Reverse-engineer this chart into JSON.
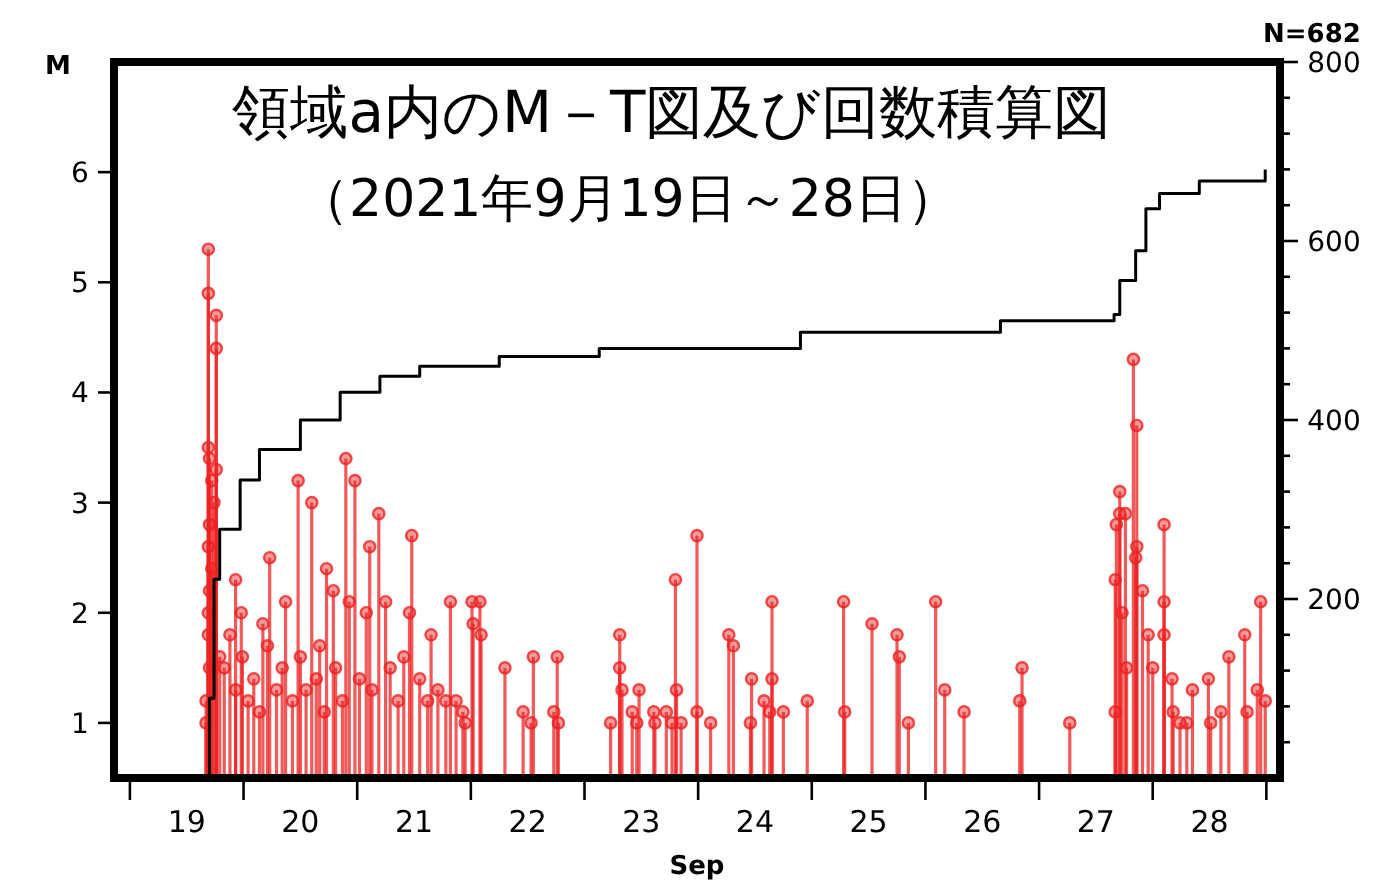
{
  "chart_data": {
    "type": "lollipop",
    "title": "領域a内のM－T図及び回数積算図",
    "subtitle": "（2021年9月19日～28日）",
    "xlabel": "Sep",
    "ylabel": "M",
    "annotations": [
      "N=682"
    ],
    "xlim": [
      18.86,
      29.12
    ],
    "xticks": [
      {
        "value": 19,
        "label": null
      },
      {
        "value": 20,
        "label": null
      },
      {
        "value": 21,
        "label": null
      },
      {
        "value": 22,
        "label": null
      },
      {
        "value": 23,
        "label": null
      },
      {
        "value": 24,
        "label": null
      },
      {
        "value": 25,
        "label": null
      },
      {
        "value": 26,
        "label": null
      },
      {
        "value": 27,
        "label": null
      },
      {
        "value": 28,
        "label": null
      },
      {
        "value": 29,
        "label": null
      },
      {
        "value": 19.5,
        "label": "19"
      },
      {
        "value": 20.5,
        "label": "20"
      },
      {
        "value": 21.5,
        "label": "21"
      },
      {
        "value": 22.5,
        "label": "22"
      },
      {
        "value": 23.5,
        "label": "23"
      },
      {
        "value": 24.5,
        "label": "24"
      },
      {
        "value": 25.5,
        "label": "25"
      },
      {
        "value": 26.5,
        "label": "26"
      },
      {
        "value": 27.5,
        "label": "27"
      },
      {
        "value": 28.5,
        "label": "28"
      }
    ],
    "ylim": [
      0.5,
      7
    ],
    "yticks": [
      1,
      2,
      3,
      4,
      5,
      6
    ],
    "y2lim": [
      0,
      800
    ],
    "y2ticks": [
      {
        "value": 40,
        "label": null
      },
      {
        "value": 80,
        "label": null
      },
      {
        "value": 120,
        "label": null
      },
      {
        "value": 160,
        "label": null
      },
      200,
      {
        "value": 240,
        "label": null
      },
      {
        "value": 280,
        "label": null
      },
      {
        "value": 320,
        "label": null
      },
      {
        "value": 360,
        "label": null
      },
      400,
      {
        "value": 440,
        "label": null
      },
      {
        "value": 480,
        "label": null
      },
      {
        "value": 520,
        "label": null
      },
      {
        "value": 560,
        "label": null
      },
      600,
      {
        "value": 640,
        "label": null
      },
      {
        "value": 680,
        "label": null
      },
      {
        "value": 720,
        "label": null
      },
      {
        "value": 760,
        "label": null
      },
      800
    ],
    "series": [
      {
        "color": "#ee2222",
        "marker": "circle",
        "x": [
          19.69,
          19.69,
          19.76,
          19.76,
          19.69,
          19.7,
          19.76,
          19.72,
          19.74,
          19.7,
          19.69,
          19.72,
          19.7,
          19.69,
          19.69,
          19.7,
          19.67,
          19.67,
          19.79,
          19.83,
          19.88,
          19.93,
          19.93,
          19.98,
          19.99,
          20.04,
          20.09,
          20.14,
          20.17,
          20.21,
          20.23,
          20.29,
          20.34,
          20.37,
          20.43,
          20.48,
          20.5,
          20.55,
          20.6,
          20.64,
          20.67,
          20.71,
          20.73,
          20.79,
          20.81,
          20.87,
          20.9,
          20.93,
          20.98,
          21.02,
          21.08,
          21.11,
          21.13,
          21.19,
          21.25,
          21.29,
          21.36,
          21.41,
          21.46,
          21.48,
          21.55,
          21.62,
          21.65,
          21.71,
          21.78,
          21.82,
          21.87,
          21.93,
          21.95,
          22.01,
          22.02,
          22.08,
          22.09,
          22.3,
          22.46,
          22.53,
          22.55,
          22.73,
          22.76,
          22.77,
          23.23,
          23.31,
          23.31,
          23.33,
          23.42,
          23.46,
          23.48,
          23.61,
          23.62,
          23.72,
          23.77,
          23.8,
          23.81,
          23.85,
          23.99,
          23.99,
          24.11,
          24.27,
          24.31,
          24.46,
          24.47,
          24.58,
          24.63,
          24.65,
          24.65,
          24.75,
          24.96,
          25.28,
          25.29,
          25.53,
          25.75,
          25.77,
          25.85,
          26.09,
          26.17,
          26.34,
          26.83,
          26.85,
          27.27,
          27.67,
          27.67,
          27.68,
          27.71,
          27.71,
          27.73,
          27.76,
          27.77,
          27.83,
          27.85,
          27.86,
          27.86,
          27.91,
          27.96,
          28.0,
          28.1,
          28.1,
          28.1,
          28.17,
          28.18,
          28.24,
          28.3,
          28.35,
          28.49,
          28.51,
          28.6,
          28.67,
          28.81,
          28.83,
          28.92,
          28.95,
          28.99
        ],
        "values": [
          5.3,
          4.9,
          4.7,
          4.4,
          3.5,
          3.4,
          3.3,
          3.2,
          3.0,
          2.8,
          2.6,
          2.4,
          2.2,
          2.0,
          1.8,
          1.5,
          1.2,
          1.0,
          1.6,
          1.5,
          1.8,
          2.3,
          1.3,
          2.0,
          1.6,
          1.2,
          1.4,
          1.1,
          1.9,
          1.7,
          2.5,
          1.3,
          1.5,
          2.1,
          1.2,
          3.2,
          1.6,
          1.3,
          3.0,
          1.4,
          1.7,
          1.1,
          2.4,
          2.2,
          1.5,
          1.2,
          3.4,
          2.1,
          3.2,
          1.4,
          2.0,
          2.6,
          1.3,
          2.9,
          2.1,
          1.5,
          1.2,
          1.6,
          2.0,
          2.7,
          1.4,
          1.2,
          1.8,
          1.3,
          1.2,
          2.1,
          1.2,
          1.1,
          1.0,
          2.1,
          1.9,
          2.1,
          1.8,
          1.5,
          1.1,
          1.0,
          1.6,
          1.1,
          1.6,
          1.0,
          1.0,
          1.8,
          1.5,
          1.3,
          1.1,
          1.0,
          1.3,
          1.1,
          1.0,
          1.1,
          1.0,
          2.3,
          1.3,
          1.0,
          2.7,
          1.1,
          1.0,
          1.8,
          1.7,
          1.0,
          1.4,
          1.2,
          1.1,
          2.1,
          1.4,
          1.1,
          1.2,
          2.1,
          1.1,
          1.9,
          1.8,
          1.6,
          1.0,
          2.1,
          1.3,
          1.1,
          1.2,
          1.5,
          1.0,
          2.3,
          1.1,
          2.8,
          3.1,
          2.9,
          2.0,
          2.9,
          1.5,
          4.3,
          2.5,
          3.7,
          2.6,
          2.2,
          1.8,
          1.5,
          2.8,
          2.1,
          1.8,
          1.4,
          1.1,
          1.0,
          1.0,
          1.3,
          1.4,
          1.0,
          1.1,
          1.6,
          1.8,
          1.1,
          1.3,
          2.1,
          1.2
        ]
      },
      {
        "type": "step",
        "axis": "y2",
        "color": "#000000",
        "x": [
          19.67,
          19.7,
          19.74,
          19.79,
          19.97,
          20.14,
          20.5,
          20.85,
          21.2,
          21.55,
          22.25,
          23.13,
          24.9,
          26.66,
          27.66,
          27.71,
          27.85,
          27.94,
          28.06,
          28.41,
          28.99
        ],
        "values": [
          0,
          89,
          222,
          278,
          333,
          367,
          400,
          431,
          449,
          460,
          471,
          480,
          498,
          511,
          518,
          556,
          589,
          636,
          653,
          667,
          680
        ]
      }
    ]
  }
}
